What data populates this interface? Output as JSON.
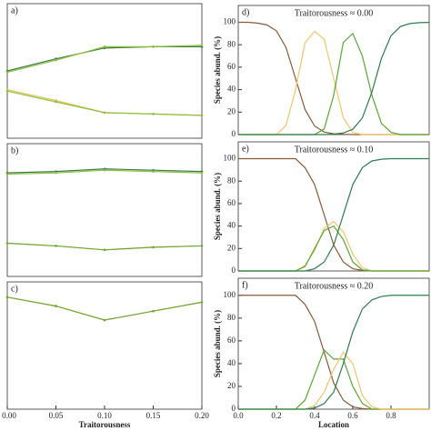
{
  "chart_data": [
    {
      "type": "line",
      "label": "a)",
      "xlim": [
        0,
        0.2
      ],
      "ylim": [
        0,
        1
      ],
      "markers": true,
      "x": [
        0,
        0.05,
        0.1,
        0.15,
        0.2
      ],
      "series": [
        {
          "color": "#3a7d44",
          "values": [
            0.5,
            0.59,
            0.67,
            0.68,
            0.68
          ]
        },
        {
          "color": "#8fbf3f",
          "values": [
            0.49,
            0.58,
            0.68,
            0.68,
            0.69
          ]
        },
        {
          "color": "#e0c050",
          "values": [
            0.36,
            0.28,
            0.19,
            0.18,
            0.17
          ]
        },
        {
          "color": "#8fbf3f",
          "values": [
            0.35,
            0.27,
            0.19,
            0.18,
            0.17
          ]
        }
      ]
    },
    {
      "type": "line",
      "label": "b)",
      "xlim": [
        0,
        0.2
      ],
      "ylim": [
        0,
        1
      ],
      "markers": true,
      "x": [
        0,
        0.05,
        0.1,
        0.15,
        0.2
      ],
      "series": [
        {
          "color": "#3a7d44",
          "values": [
            0.78,
            0.79,
            0.81,
            0.8,
            0.79
          ]
        },
        {
          "color": "#8fbf3f",
          "values": [
            0.77,
            0.78,
            0.8,
            0.79,
            0.78
          ]
        },
        {
          "color": "#e0c050",
          "values": [
            0.25,
            0.23,
            0.2,
            0.22,
            0.23
          ]
        },
        {
          "color": "#6ea83a",
          "values": [
            0.25,
            0.23,
            0.2,
            0.22,
            0.23
          ]
        }
      ]
    },
    {
      "type": "line",
      "label": "c)",
      "xlim": [
        0,
        0.2
      ],
      "ylim": [
        0,
        1
      ],
      "markers": true,
      "xlabel": "Traitorousness",
      "xticks": [
        {
          "value": 0,
          "label": "0.00"
        },
        {
          "value": 0.05,
          "label": "0.05"
        },
        {
          "value": 0.1,
          "label": "0.10"
        },
        0.15,
        {
          "value": 0.2,
          "label": "0.20"
        }
      ],
      "x": [
        0,
        0.05,
        0.1,
        0.15,
        0.2
      ],
      "series": [
        {
          "color": "#e0c050",
          "values": [
            0.88,
            0.81,
            0.7,
            0.77,
            0.84
          ]
        },
        {
          "color": "#6ea83a",
          "values": [
            0.88,
            0.81,
            0.7,
            0.77,
            0.84
          ]
        }
      ]
    },
    {
      "type": "line",
      "label": "d)",
      "title": "Traitorousness ≈ 0.00",
      "ylabel": "Species abund. (%)",
      "xlim": [
        0,
        1
      ],
      "ylim": [
        0,
        115
      ],
      "yticks": [
        0,
        20,
        40,
        60,
        80,
        100
      ],
      "x": [
        0,
        0.05,
        0.1,
        0.15,
        0.2,
        0.25,
        0.3,
        0.35,
        0.4,
        0.45,
        0.5,
        0.55,
        0.6,
        0.65,
        0.7,
        0.75,
        0.8,
        0.85,
        0.9,
        0.95,
        1
      ],
      "series": [
        {
          "color": "#8b5a3c",
          "values": [
            100,
            100,
            99.3,
            97.7,
            92.4,
            77.7,
            50,
            22.3,
            7.6,
            2.3,
            0.7,
            0.2,
            0,
            0,
            0,
            0,
            0,
            0,
            0,
            0,
            0
          ]
        },
        {
          "color": "#f5c46a",
          "values": [
            0,
            0,
            0,
            0,
            0,
            8,
            40,
            82,
            92,
            85,
            50,
            15,
            2,
            0,
            0,
            0,
            0,
            0,
            0,
            0,
            0
          ]
        },
        {
          "color": "#5aa832",
          "values": [
            0,
            0,
            0,
            0,
            0,
            0,
            0,
            0,
            0,
            5,
            35,
            82,
            90,
            70,
            35,
            10,
            2,
            0,
            0,
            0,
            0
          ]
        },
        {
          "color": "#2e7d4f",
          "values": [
            0,
            0,
            0,
            0,
            0,
            0,
            0,
            0,
            0,
            0,
            0.4,
            1.4,
            4.7,
            14.8,
            37.8,
            67.9,
            88.1,
            96.3,
            98.9,
            99.7,
            99.9
          ]
        }
      ]
    },
    {
      "type": "line",
      "label": "e)",
      "title": "Traitorousness ≈ 0.10",
      "ylabel": "Species abund. (%)",
      "xlim": [
        0,
        1
      ],
      "ylim": [
        0,
        115
      ],
      "yticks": [
        0,
        20,
        40,
        60,
        80,
        100
      ],
      "x": [
        0,
        0.05,
        0.1,
        0.15,
        0.2,
        0.25,
        0.3,
        0.35,
        0.4,
        0.45,
        0.5,
        0.55,
        0.6,
        0.65,
        0.7,
        0.75,
        0.8,
        0.85,
        0.9,
        0.95,
        1
      ],
      "series": [
        {
          "color": "#8b5a3c",
          "values": [
            100,
            100,
            100,
            100,
            100,
            100,
            100,
            92,
            77,
            50,
            23,
            8,
            2,
            0.5,
            0,
            0,
            0,
            0,
            0,
            0,
            0
          ]
        },
        {
          "color": "#f5c46a",
          "values": [
            0,
            0,
            0,
            0,
            0,
            0,
            0,
            5,
            18,
            38,
            44,
            35,
            15,
            3,
            0,
            0,
            0,
            0,
            0,
            0,
            0
          ]
        },
        {
          "color": "#5aa832",
          "values": [
            0,
            0,
            0,
            0,
            0,
            0,
            0,
            4,
            20,
            36,
            40,
            28,
            8,
            1,
            0,
            0,
            0,
            0,
            0,
            0,
            0
          ]
        },
        {
          "color": "#2e7d4f",
          "values": [
            0,
            0,
            0,
            0,
            0,
            0,
            0,
            0,
            2,
            8,
            23,
            50,
            77,
            92,
            98,
            99.5,
            100,
            100,
            100,
            100,
            100
          ]
        }
      ]
    },
    {
      "type": "line",
      "label": "f)",
      "title": "Traitorousness ≈ 0.20",
      "ylabel": "Species abund. (%)",
      "xlabel": "Location",
      "xlim": [
        0,
        1
      ],
      "ylim": [
        0,
        115
      ],
      "yticks": [
        0,
        20,
        40,
        60,
        80,
        100
      ],
      "xticks": [
        {
          "value": 0,
          "label": "0.0"
        },
        0.2,
        0.4,
        0.6,
        0.8
      ],
      "x": [
        0,
        0.05,
        0.1,
        0.15,
        0.2,
        0.25,
        0.3,
        0.35,
        0.4,
        0.45,
        0.5,
        0.55,
        0.6,
        0.65,
        0.7,
        0.75,
        0.8,
        0.85,
        0.9,
        0.95,
        1
      ],
      "series": [
        {
          "color": "#8b5a3c",
          "values": [
            100,
            100,
            100,
            100,
            100,
            100,
            100,
            92,
            77,
            50,
            23,
            8,
            2,
            0.5,
            0,
            0,
            0,
            0,
            0,
            0,
            0
          ]
        },
        {
          "color": "#5aa832",
          "values": [
            0,
            0,
            0,
            0,
            0,
            0,
            0,
            8,
            30,
            52,
            44,
            44,
            20,
            5,
            0,
            0,
            0,
            0,
            0,
            0,
            0
          ]
        },
        {
          "color": "#f5c46a",
          "values": [
            0,
            0,
            0,
            0,
            0,
            0,
            0,
            0,
            3,
            15,
            35,
            50,
            40,
            12,
            2,
            0,
            0,
            0,
            0,
            0,
            0
          ]
        },
        {
          "color": "#2e7d4f",
          "values": [
            0,
            0,
            0,
            0,
            0,
            0,
            0,
            0,
            1,
            5,
            15,
            40,
            68,
            88,
            96,
            99,
            100,
            100,
            100,
            100,
            100
          ]
        }
      ]
    }
  ]
}
